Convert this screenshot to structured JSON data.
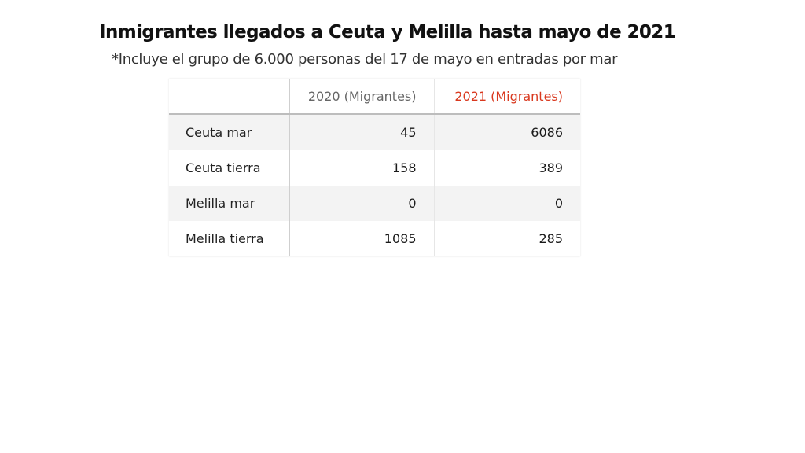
{
  "title": "Inmigrantes llegados a Ceuta y Melilla hasta mayo de 2021",
  "subtitle": "*Incluye el grupo de 6.000 personas del 17 de mayo en entradas por mar",
  "colors": {
    "highlight_header": "#d9381e",
    "header_text": "#666666",
    "row_alt_background": "#f3f3f3"
  },
  "chart_data": {
    "type": "table",
    "columns": [
      "",
      "2020 (Migrantes)",
      "2021 (Migrantes)"
    ],
    "rows": [
      {
        "label": "Ceuta mar",
        "values": [
          "45",
          "6086"
        ]
      },
      {
        "label": "Ceuta tierra",
        "values": [
          "158",
          "389"
        ]
      },
      {
        "label": "Melilla mar",
        "values": [
          "0",
          "0"
        ]
      },
      {
        "label": "Melilla tierra",
        "values": [
          "1085",
          "285"
        ]
      }
    ]
  }
}
